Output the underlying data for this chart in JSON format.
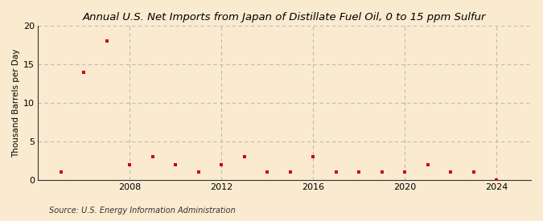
{
  "title": "Annual U.S. Net Imports from Japan of Distillate Fuel Oil, 0 to 15 ppm Sulfur",
  "ylabel": "Thousand Barrels per Day",
  "source": "Source: U.S. Energy Information Administration",
  "background_color": "#faebd0",
  "plot_bg_color": "#faebd0",
  "years": [
    2005,
    2006,
    2007,
    2008,
    2009,
    2010,
    2011,
    2012,
    2013,
    2014,
    2015,
    2016,
    2017,
    2018,
    2019,
    2020,
    2021,
    2022,
    2023,
    2024
  ],
  "values": [
    1,
    14,
    18,
    2,
    3,
    2,
    1,
    2,
    3,
    1,
    1,
    3,
    1,
    1,
    1,
    1,
    2,
    1,
    1,
    0
  ],
  "marker_color": "#cc0000",
  "ylim": [
    0,
    20
  ],
  "yticks": [
    0,
    5,
    10,
    15,
    20
  ],
  "xticks": [
    2008,
    2012,
    2016,
    2020,
    2024
  ],
  "xlim": [
    2004.0,
    2025.5
  ],
  "grid_color": "#bbbbbb",
  "title_fontsize": 9.5,
  "label_fontsize": 7.5,
  "tick_fontsize": 8,
  "source_fontsize": 7
}
